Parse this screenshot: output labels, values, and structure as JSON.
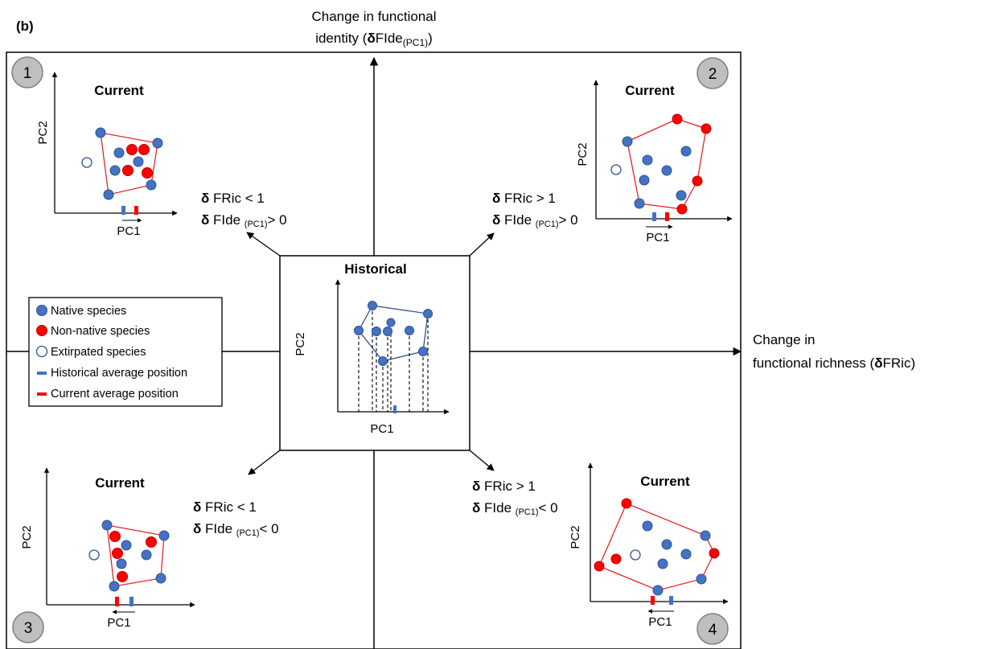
{
  "panel_label": "(b)",
  "axes": {
    "y_title_line1": "Change in functional",
    "y_title_line2_prefix": "identity (",
    "y_title_delta": "δ",
    "y_title_main": "FIde",
    "y_title_sub": "(PC1)",
    "y_title_suffix": ")",
    "x_title_line1": "Change in",
    "x_title_line2_prefix": "functional richness (",
    "x_title_delta": "δ",
    "x_title_main": "FRic",
    "x_title_suffix": ")"
  },
  "historical": {
    "title": "Historical",
    "xlabel": "PC1",
    "ylabel": "PC2"
  },
  "quadrants": [
    {
      "number": "1",
      "title": "Current",
      "xlabel": "PC1",
      "ylabel": "PC2",
      "fric_delta": "δ",
      "fric_text": " FRic < 1",
      "fide_delta": "δ",
      "fide_text": " FIde ",
      "fide_sub": "(PC1)",
      "fide_rel": "> 0"
    },
    {
      "number": "2",
      "title": "Current",
      "xlabel": "PC1",
      "ylabel": "PC2",
      "fric_delta": "δ",
      "fric_text": " FRic > 1",
      "fide_delta": "δ",
      "fide_text": " FIde ",
      "fide_sub": "(PC1)",
      "fide_rel": "> 0"
    },
    {
      "number": "3",
      "title": "Current",
      "xlabel": "PC1",
      "ylabel": "PC2",
      "fric_delta": "δ",
      "fric_text": " FRic < 1",
      "fide_delta": "δ",
      "fide_text": " FIde ",
      "fide_sub": "(PC1)",
      "fide_rel": "< 0"
    },
    {
      "number": "4",
      "title": "Current",
      "xlabel": "PC1",
      "ylabel": "PC2",
      "fric_delta": "δ",
      "fric_text": " FRic > 1",
      "fide_delta": "δ",
      "fide_text": " FIde ",
      "fide_sub": "(PC1)",
      "fide_rel": "< 0"
    }
  ],
  "legend": {
    "native": "Native species",
    "non_native": "Non-native species",
    "extirpated": "Extirpated species",
    "historical_avg": "Historical average position",
    "current_avg": "Current average position"
  },
  "colors": {
    "native": "#4472c4",
    "native_stroke": "#2f528f",
    "non_native": "#ff0000",
    "hull_current": "#e3262d",
    "hull_historical": "#2f5597",
    "badge_fill": "#bfbfbf",
    "badge_stroke": "#7f7f7f"
  }
}
